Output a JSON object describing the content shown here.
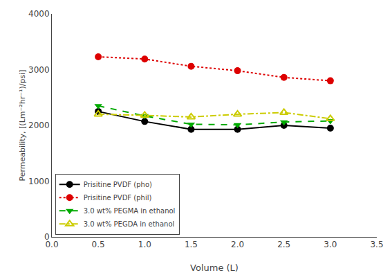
{
  "chart_data": {
    "type": "line",
    "xlabel": "Volume (L)",
    "ylabel": "Permeability, [(Lm⁻²hr⁻¹)/psi]",
    "x": [
      0.5,
      1.0,
      1.5,
      2.0,
      2.5,
      3.0
    ],
    "series": [
      {
        "name": "Prisitine PVDF (pho)",
        "color": "#000000",
        "marker": "circle",
        "line_style": "solid",
        "values": [
          2250,
          2070,
          1930,
          1930,
          2000,
          1950
        ]
      },
      {
        "name": "Prisitine PVDF (phil)",
        "color": "#dd0000",
        "marker": "circle",
        "line_style": "dotted",
        "values": [
          3230,
          3190,
          3060,
          2980,
          2860,
          2800
        ]
      },
      {
        "name": "3.0 wt% PEGMA in ethanol",
        "color": "#00aa00",
        "marker": "triangle-down",
        "line_style": "dashed",
        "values": [
          2350,
          2170,
          2020,
          2010,
          2060,
          2080
        ]
      },
      {
        "name": "3.0 wt% PEGDA in ethanol",
        "color": "#cccc00",
        "marker": "triangle-up-open",
        "line_style": "dashdot",
        "values": [
          2200,
          2180,
          2150,
          2200,
          2230,
          2120
        ]
      }
    ],
    "xlim": [
      0.0,
      3.5
    ],
    "xticks": [
      {
        "value": 0.0,
        "label": "0.0"
      },
      0.5,
      {
        "value": 1.0,
        "label": "1.0"
      },
      1.5,
      {
        "value": 2.0,
        "label": "2.0"
      },
      2.5,
      {
        "value": 3.0,
        "label": "3.0"
      },
      3.5
    ],
    "ylim": [
      0,
      4000
    ],
    "yticks": [
      0,
      1000,
      2000,
      3000,
      4000
    ],
    "grid": false,
    "legend": "lower left"
  }
}
